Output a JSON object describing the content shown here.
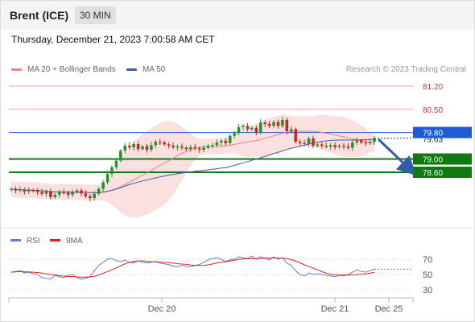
{
  "header": {
    "instrument": "Brent (ICE)",
    "timeframe": "30 MIN"
  },
  "datetime": "Thursday, December 21, 2023 7:00:58 AM CET",
  "legend": {
    "items": [
      {
        "label": "MA 20 + Bollinger Bands",
        "color": "#f08080"
      },
      {
        "label": "MA 50",
        "color": "#3a5fa8"
      }
    ],
    "credit": "Research © 2023 Trading Central"
  },
  "levels": {
    "resistance": [
      "81.20",
      "80.50"
    ],
    "pivot": "79.80",
    "current_price": "79.63",
    "support": [
      "79.00",
      "78.60"
    ]
  },
  "rsi_legend": [
    {
      "label": "RSI",
      "color": "#5b7fd6"
    },
    {
      "label": "9MA",
      "color": "#e02020"
    }
  ],
  "rsi_scale": [
    "70",
    "50",
    "30"
  ],
  "x_axis": [
    "Dec 20",
    "Dec 21",
    "Dec 25"
  ],
  "colors": {
    "up": "#2f8f2f",
    "down": "#c62828",
    "pivot_blue": "#1e5bd6",
    "support_green": "#0f7a0f",
    "arrow": "#2f5fa5"
  },
  "chart_data": {
    "type": "candlestick",
    "closes": [
      78.1,
      78.05,
      78.08,
      78.02,
      78.06,
      78.04,
      78.0,
      77.95,
      78.02,
      77.85,
      77.92,
      78.0,
      77.98,
      77.92,
      78.0,
      78.05,
      77.96,
      77.88,
      77.82,
      77.95,
      78.1,
      78.3,
      78.55,
      78.75,
      78.95,
      79.25,
      79.4,
      79.35,
      79.45,
      79.3,
      79.38,
      79.28,
      79.42,
      79.52,
      79.5,
      79.44,
      79.4,
      79.36,
      79.38,
      79.34,
      79.3,
      79.36,
      79.32,
      79.28,
      79.34,
      79.4,
      79.42,
      79.5,
      79.55,
      79.48,
      79.7,
      79.78,
      79.96,
      80.0,
      79.9,
      79.94,
      79.8,
      80.1,
      80.06,
      80.0,
      80.12,
      80.0,
      80.18,
      79.84,
      79.9,
      79.52,
      79.48,
      79.46,
      79.62,
      79.4,
      79.44,
      79.4,
      79.38,
      79.42,
      79.36,
      79.4,
      79.38,
      79.34,
      79.5,
      79.56,
      79.5,
      79.48,
      79.52,
      79.63
    ],
    "ylim": [
      77.85,
      81.35
    ],
    "levels": [
      81.2,
      80.5,
      79.8,
      79.63,
      79.0,
      78.6
    ],
    "x_ticks": [
      "Dec 20",
      "Dec 21",
      "Dec 25"
    ],
    "rsi": [
      53,
      54,
      55,
      52,
      53,
      51,
      50,
      46,
      45,
      44,
      49,
      47,
      46,
      49,
      50,
      46,
      44,
      45,
      47,
      55,
      62,
      66,
      70,
      71,
      68,
      67,
      69,
      66,
      65,
      68,
      66,
      65,
      66,
      67,
      65,
      64,
      63,
      61,
      60,
      62,
      61,
      60,
      62,
      63,
      66,
      69,
      71,
      72,
      70,
      67,
      69,
      70,
      73,
      72,
      71,
      74,
      70,
      73,
      71,
      69,
      73,
      70,
      72,
      65,
      62,
      55,
      50,
      48,
      52,
      50,
      51,
      50,
      49,
      48,
      47,
      49,
      48,
      50,
      53,
      56,
      54,
      53,
      55,
      57
    ],
    "rsi_ylim": [
      20,
      80
    ],
    "rsi_levels": [
      70,
      50,
      30
    ]
  }
}
